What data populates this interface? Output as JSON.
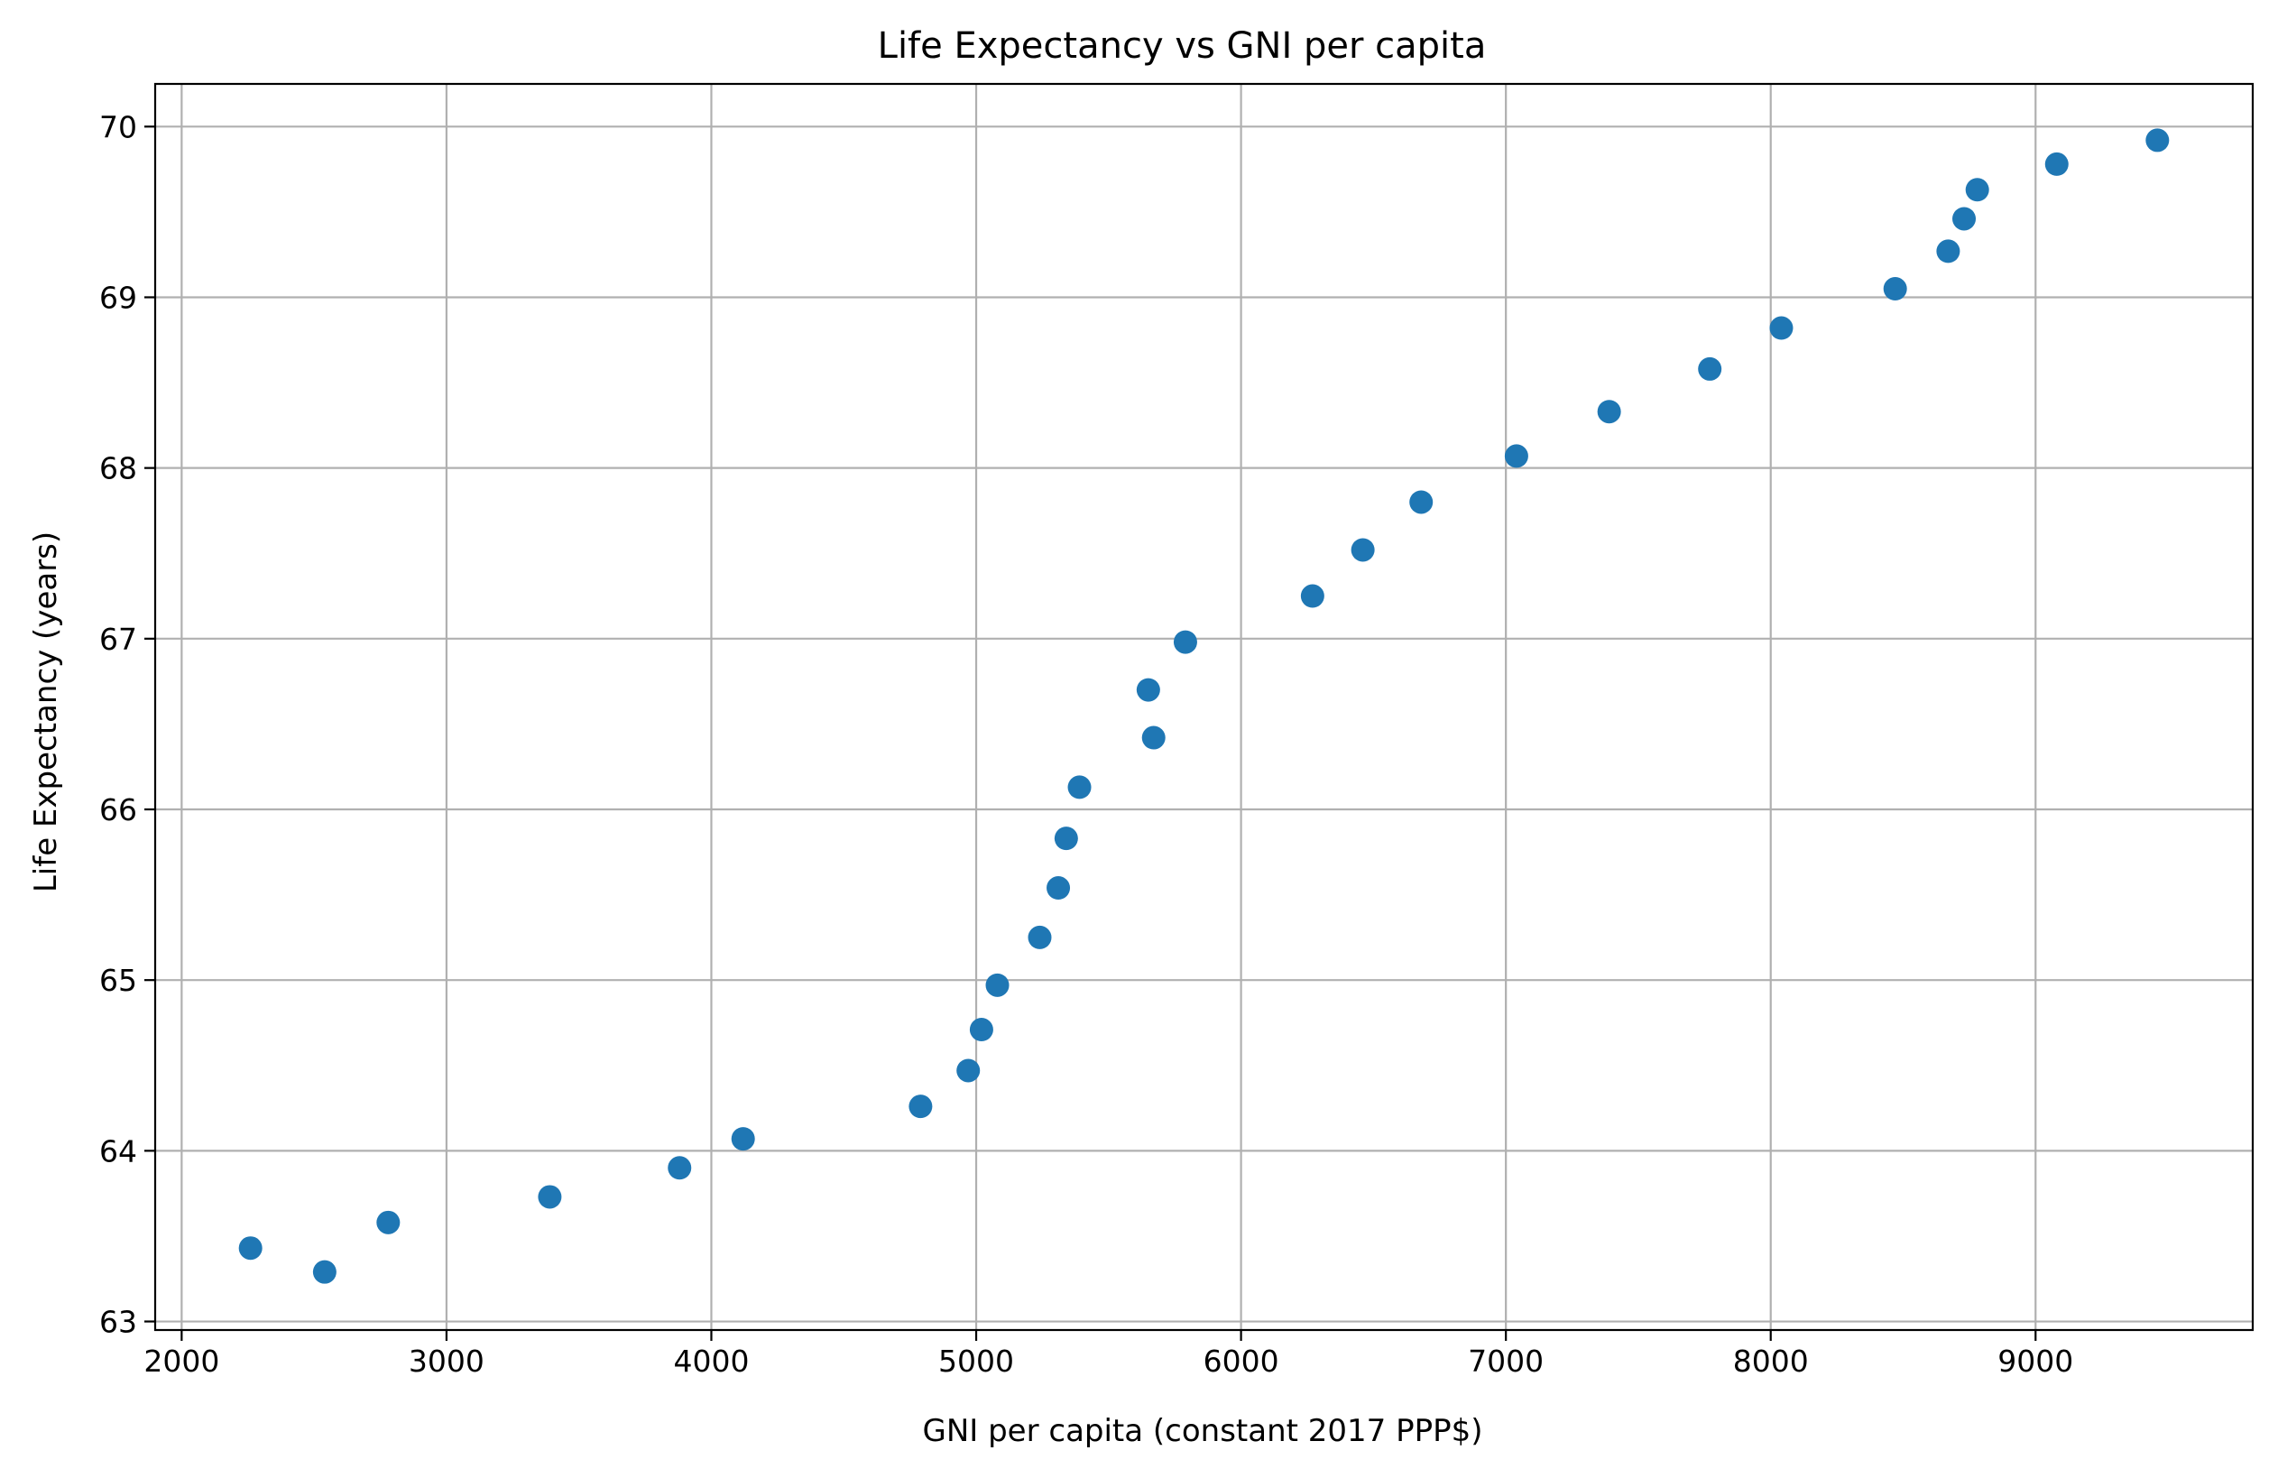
{
  "chart_data": {
    "type": "scatter",
    "title": "Life Expectancy vs GNI per capita",
    "xlabel": "GNI per capita (constant 2017 PPP$)",
    "ylabel": "Life Expectancy (years)",
    "xlim": [
      1900,
      9820
    ],
    "ylim": [
      62.95,
      70.25
    ],
    "xticks": [
      2000,
      3000,
      4000,
      5000,
      6000,
      7000,
      8000,
      9000
    ],
    "yticks": [
      63,
      64,
      65,
      66,
      67,
      68,
      69,
      70
    ],
    "grid": true,
    "marker_color": "#1f77b4",
    "points": [
      {
        "x": 2260,
        "y": 63.43
      },
      {
        "x": 2540,
        "y": 63.29
      },
      {
        "x": 2780,
        "y": 63.58
      },
      {
        "x": 3390,
        "y": 63.73
      },
      {
        "x": 3880,
        "y": 63.9
      },
      {
        "x": 4120,
        "y": 64.07
      },
      {
        "x": 4790,
        "y": 64.26
      },
      {
        "x": 4970,
        "y": 64.47
      },
      {
        "x": 5020,
        "y": 64.71
      },
      {
        "x": 5080,
        "y": 64.97
      },
      {
        "x": 5240,
        "y": 65.25
      },
      {
        "x": 5310,
        "y": 65.54
      },
      {
        "x": 5340,
        "y": 65.83
      },
      {
        "x": 5390,
        "y": 66.13
      },
      {
        "x": 5670,
        "y": 66.42
      },
      {
        "x": 5650,
        "y": 66.7
      },
      {
        "x": 5790,
        "y": 66.98
      },
      {
        "x": 6270,
        "y": 67.25
      },
      {
        "x": 6460,
        "y": 67.52
      },
      {
        "x": 6680,
        "y": 67.8
      },
      {
        "x": 7040,
        "y": 68.07
      },
      {
        "x": 7390,
        "y": 68.33
      },
      {
        "x": 7770,
        "y": 68.58
      },
      {
        "x": 8040,
        "y": 68.82
      },
      {
        "x": 8470,
        "y": 69.05
      },
      {
        "x": 8670,
        "y": 69.27
      },
      {
        "x": 8730,
        "y": 69.46
      },
      {
        "x": 8780,
        "y": 69.63
      },
      {
        "x": 9080,
        "y": 69.78
      },
      {
        "x": 9460,
        "y": 69.92
      }
    ]
  }
}
